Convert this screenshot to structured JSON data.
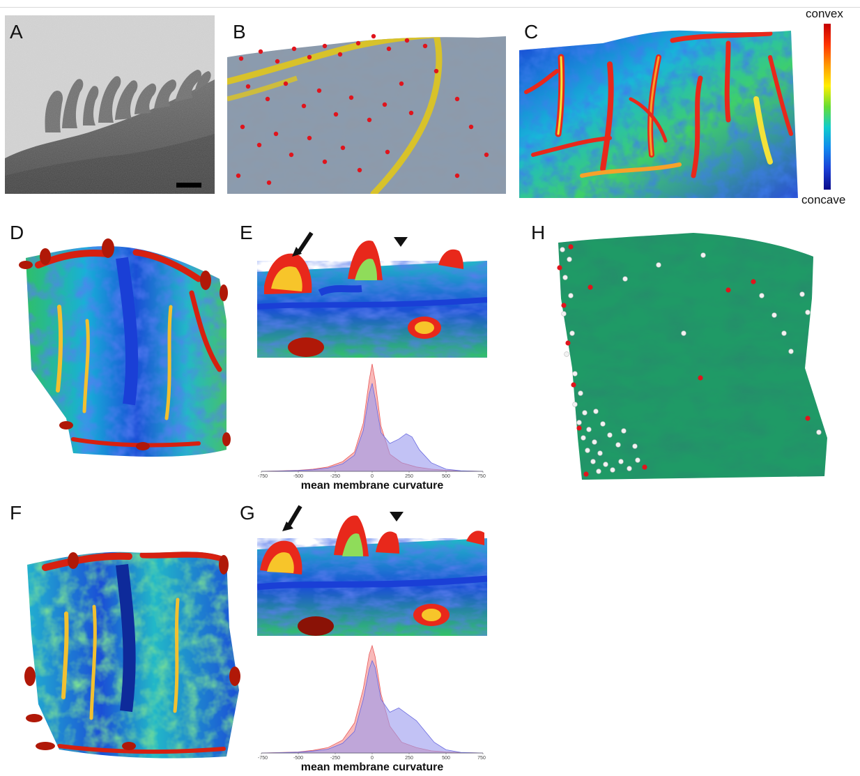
{
  "panels": {
    "a": {
      "letter": "A"
    },
    "b": {
      "letter": "B"
    },
    "c": {
      "letter": "C"
    },
    "d": {
      "letter": "D"
    },
    "e": {
      "letter": "E"
    },
    "f": {
      "letter": "F"
    },
    "g": {
      "letter": "G"
    },
    "h": {
      "letter": "H"
    }
  },
  "colorbar": {
    "top_label": "convex",
    "bottom_label": "concave"
  },
  "colors": {
    "em_gray": "#8a8a8a",
    "membrane_gray": "#8b9bae",
    "filament_yellow": "#d8c22a",
    "marker_red": "#e0141c",
    "membrane_green": "#1f9a66",
    "marker_white": "#f2f2f2",
    "hist_red": "#f48a8a",
    "hist_blue": "#9a9aee"
  },
  "chart_data": [
    {
      "type": "area",
      "panel": "E",
      "xlabel": "mean membrane curvature",
      "xlim": [
        -750,
        750
      ],
      "xticks": [
        -750,
        -500,
        -250,
        0,
        250,
        500,
        750
      ],
      "series": [
        {
          "x": [
            -750,
            -600,
            -500,
            -400,
            -300,
            -200,
            -120,
            -60,
            -20,
            0,
            20,
            60,
            120,
            200,
            300,
            400,
            500,
            600,
            750
          ],
          "values": [
            0,
            0.005,
            0.01,
            0.02,
            0.04,
            0.09,
            0.18,
            0.45,
            0.85,
            1.0,
            0.85,
            0.42,
            0.16,
            0.08,
            0.04,
            0.02,
            0.01,
            0.004,
            0
          ]
        },
        {
          "x": [
            -750,
            -600,
            -500,
            -400,
            -300,
            -200,
            -120,
            -60,
            -20,
            0,
            20,
            60,
            120,
            180,
            230,
            270,
            320,
            400,
            500,
            600,
            750
          ],
          "values": [
            0,
            0.004,
            0.008,
            0.015,
            0.03,
            0.07,
            0.15,
            0.38,
            0.72,
            0.82,
            0.68,
            0.36,
            0.26,
            0.3,
            0.35,
            0.32,
            0.2,
            0.08,
            0.02,
            0.005,
            0
          ]
        }
      ]
    },
    {
      "type": "area",
      "panel": "G",
      "xlabel": "mean membrane curvature",
      "xlim": [
        -750,
        750
      ],
      "xticks": [
        -750,
        -500,
        -250,
        0,
        250,
        500,
        750
      ],
      "series": [
        {
          "x": [
            -750,
            -600,
            -500,
            -400,
            -300,
            -200,
            -120,
            -60,
            -20,
            0,
            20,
            60,
            120,
            200,
            300,
            400,
            500,
            600,
            750
          ],
          "values": [
            0,
            0.005,
            0.01,
            0.025,
            0.05,
            0.12,
            0.28,
            0.6,
            0.92,
            1.0,
            0.9,
            0.55,
            0.25,
            0.1,
            0.05,
            0.02,
            0.01,
            0.004,
            0
          ]
        },
        {
          "x": [
            -750,
            -600,
            -500,
            -400,
            -300,
            -200,
            -120,
            -60,
            -20,
            0,
            20,
            60,
            120,
            180,
            240,
            300,
            360,
            420,
            500,
            600,
            750
          ],
          "values": [
            0,
            0.004,
            0.008,
            0.018,
            0.035,
            0.09,
            0.2,
            0.5,
            0.78,
            0.86,
            0.8,
            0.5,
            0.38,
            0.42,
            0.36,
            0.3,
            0.2,
            0.1,
            0.03,
            0.006,
            0
          ]
        }
      ]
    }
  ]
}
